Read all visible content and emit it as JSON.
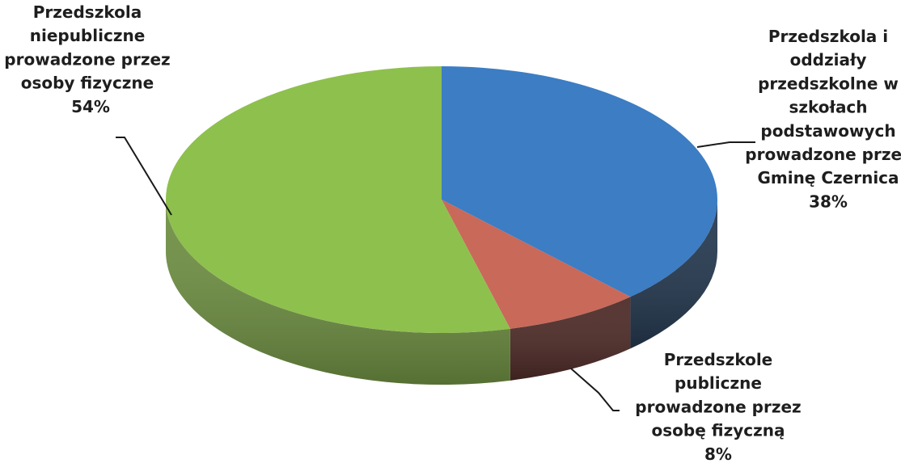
{
  "chart_data": {
    "type": "pie",
    "style": "3d",
    "title": "",
    "slices": [
      {
        "label_lines": [
          "Przedszkola i",
          "oddziały",
          "przedszkolne w",
          "szkołach",
          "podstawowych",
          "prowadzone przez",
          "Gminę Czernica"
        ],
        "value": 38,
        "value_label": "38%",
        "color": "#3c7dc4",
        "side_color": "#24384f"
      },
      {
        "label_lines": [
          "Przedszkole",
          "publiczne",
          "prowadzone przez",
          "osobę fizyczną"
        ],
        "value": 8,
        "value_label": "8%",
        "color": "#c8695a",
        "side_color": "#4d2a26"
      },
      {
        "label_lines": [
          "Przedszkola",
          "niepubliczne",
          "prowadzone przez",
          "osoby fizyczne"
        ],
        "value": 54,
        "value_label": "54%",
        "color": "#8ec04e",
        "side_color": "#6e8f42"
      }
    ]
  }
}
